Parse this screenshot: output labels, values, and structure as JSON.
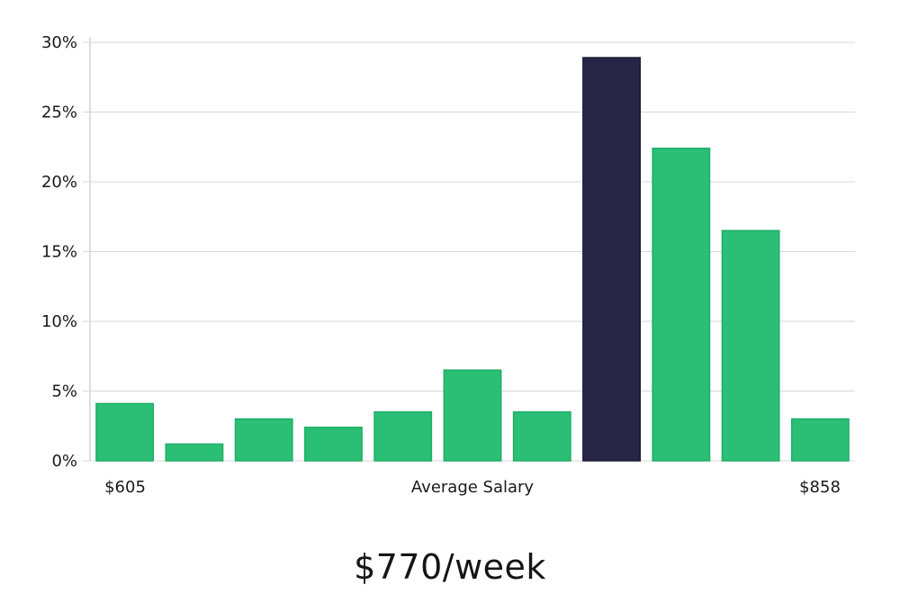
{
  "chart_data": {
    "type": "bar",
    "y_tick_labels": [
      "0%",
      "5%",
      "10%",
      "15%",
      "20%",
      "25%",
      "30%"
    ],
    "ylim": [
      0,
      30
    ],
    "y_unit": "%",
    "grid": true,
    "values": [
      4.1,
      1.2,
      3.0,
      2.4,
      3.5,
      6.5,
      3.5,
      28.9,
      22.4,
      16.5,
      3.0
    ],
    "highlight_index": 7,
    "x_start_label": "$605",
    "x_center_label": "Average Salary",
    "x_end_label": "$858",
    "colors": {
      "bar": "#2bbf76",
      "bar_stroke": "#1fae67",
      "highlight": "#272546",
      "grid": "#d9d9d9",
      "axis": "#bdbdbd"
    }
  },
  "headline": "$770/week"
}
